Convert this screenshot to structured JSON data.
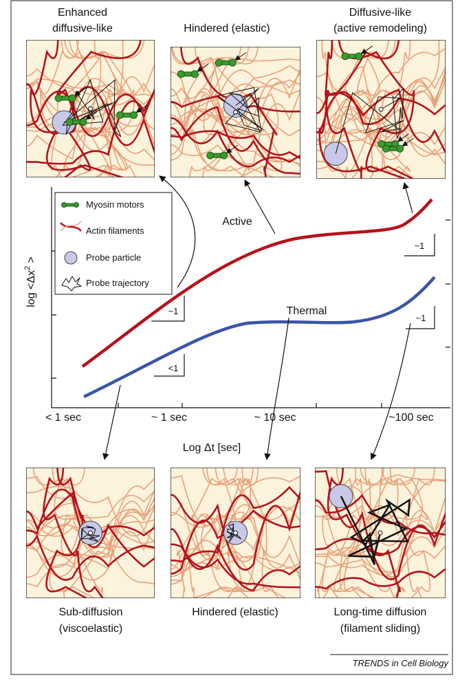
{
  "top_panels": [
    {
      "title": [
        "Enhanced",
        "diffusive-like"
      ]
    },
    {
      "title": [
        "Hindered (elastic)"
      ]
    },
    {
      "title": [
        "Diffusive-like",
        "(active remodeling)"
      ]
    }
  ],
  "legend": [
    "Myosin motors",
    "Actin filaments",
    "Probe particle",
    "Probe trajectory"
  ],
  "curves": {
    "active": "Active",
    "thermal": "Thermal"
  },
  "slopes": [
    "~1",
    "<1",
    "~1",
    "~1"
  ],
  "axes": {
    "y_label": "log <Δx",
    "y_label_sup": "2",
    "y_label_end": " >",
    "x_label": "Log Δt [sec]",
    "x_ticks": [
      "< 1 sec",
      "~ 1 sec",
      "~ 10 sec",
      "~100 sec"
    ]
  },
  "bottom_panels": [
    {
      "title": [
        "Sub-diffusion",
        "(viscoelastic)"
      ]
    },
    {
      "title": [
        "Hindered (elastic)"
      ]
    },
    {
      "title": [
        "Long-time diffusion",
        "(filament sliding)"
      ]
    }
  ],
  "footer": "TRENDS in Cell Biology"
}
